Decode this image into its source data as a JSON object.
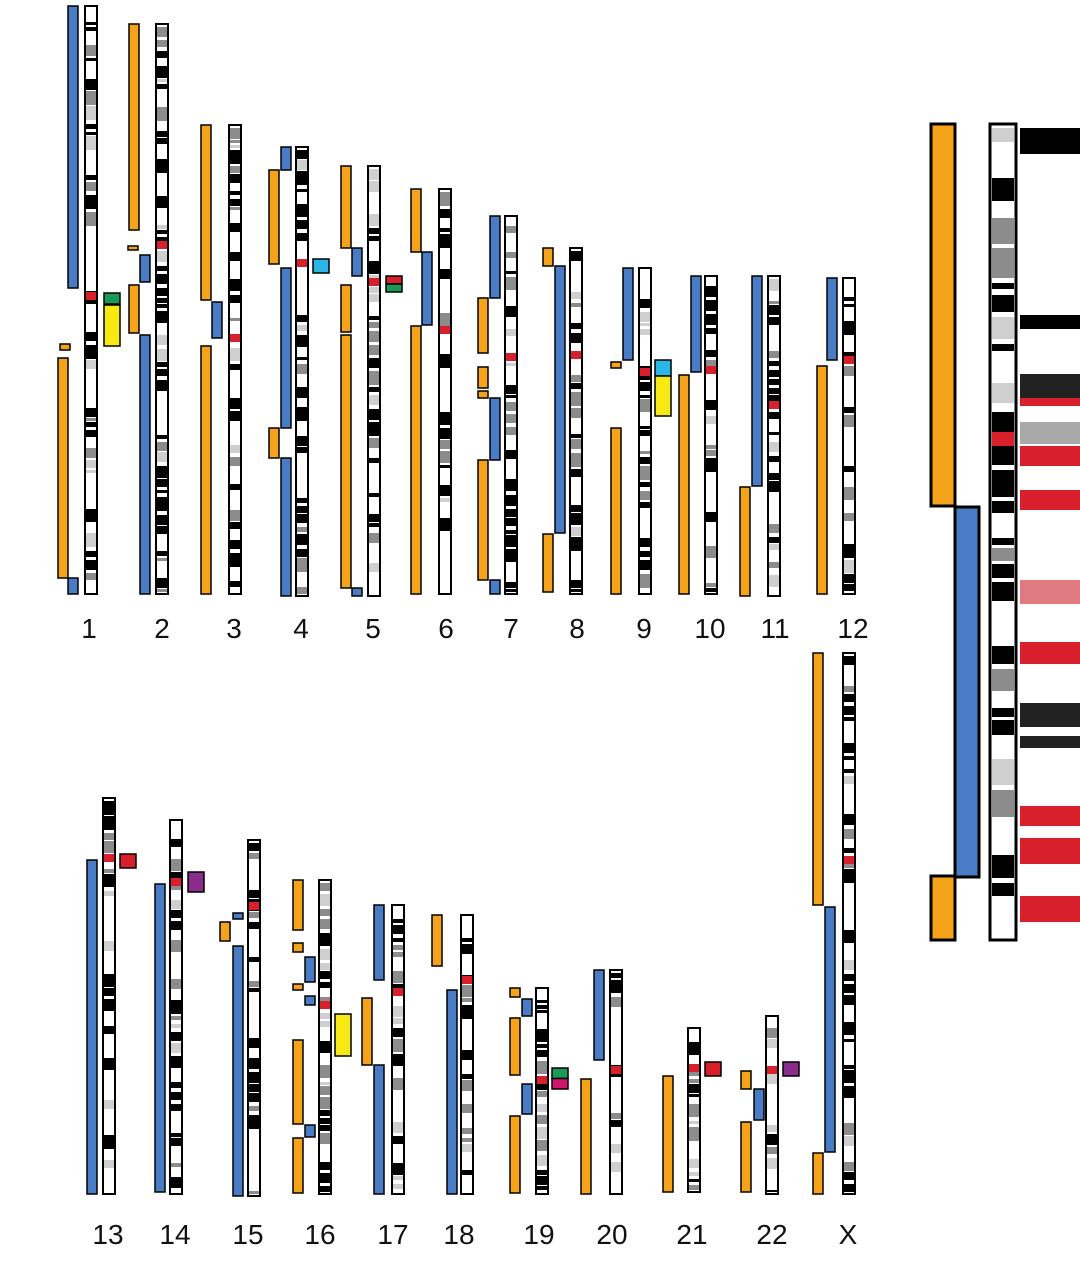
{
  "colors": {
    "orange": "#f5a31a",
    "blue": "#4a7cc5",
    "red": "#d8202c",
    "green": "#1b9a57",
    "magenta": "#d0166f",
    "cyan": "#2bb7e5",
    "yellow": "#f7ea14",
    "purple": "#8a2c8c",
    "black": "#000000",
    "gray": "#8c8c8c",
    "light_gray": "#cfcfcf"
  },
  "legend": {},
  "chromosomes": [
    {
      "label": "1"
    },
    {
      "label": "2"
    },
    {
      "label": "3"
    },
    {
      "label": "4"
    },
    {
      "label": "5"
    },
    {
      "label": "6"
    },
    {
      "label": "7"
    },
    {
      "label": "8"
    },
    {
      "label": "9"
    },
    {
      "label": "10"
    },
    {
      "label": "11"
    },
    {
      "label": "12"
    },
    {
      "label": "13"
    },
    {
      "label": "14"
    },
    {
      "label": "15"
    },
    {
      "label": "16"
    },
    {
      "label": "17"
    },
    {
      "label": "18"
    },
    {
      "label": "19"
    },
    {
      "label": "20"
    },
    {
      "label": "21"
    },
    {
      "label": "22"
    },
    {
      "label": "X"
    }
  ],
  "detail_view": {
    "chromosome": "X"
  }
}
